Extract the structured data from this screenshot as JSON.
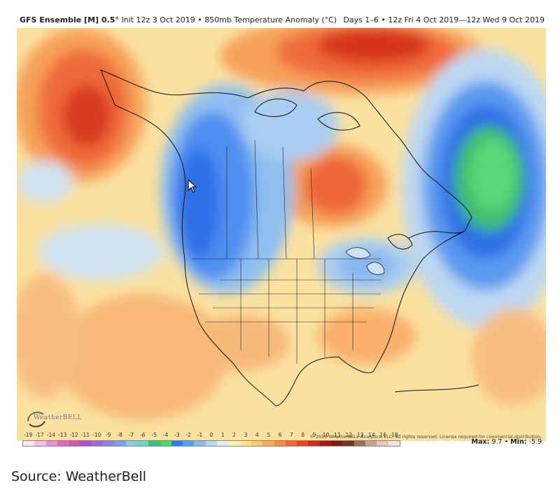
{
  "header": {
    "model": "GFS Ensemble [M] 0.5°",
    "init": "Init 12z 3 Oct 2019",
    "sep": "•",
    "field": "850mb Temperature Anomaly (°C)",
    "valid": "Days 1–6 • 12z Fri 4 Oct 2019—12z Wed 9 Oct 2019"
  },
  "map": {
    "region": "North America",
    "credit": "© 2019 WeatherBELL Analytics, LLC. All rights reserved. License required for commercial distribution.",
    "logo_text": "WeatherBELL",
    "logo_icon": "weatherbell-logo"
  },
  "colorbar": {
    "labels": [
      "-19",
      "-17",
      "-14",
      "-13",
      "-12",
      "-11",
      "-10",
      "-9",
      "-8",
      "-7",
      "-6",
      "-5",
      "-4",
      "-3",
      "-2",
      "-1",
      "0",
      "1",
      "2",
      "3",
      "4",
      "5",
      "6",
      "7",
      "8",
      "9",
      "10",
      "11",
      "12",
      "13",
      "14",
      "16",
      "18"
    ],
    "colors": [
      "#ffe6f7",
      "#f5bfe6",
      "#e88fd6",
      "#d768c4",
      "#c45ab5",
      "#a856c7",
      "#9a6bd6",
      "#8a84e3",
      "#7aa0ea",
      "#8cc8e8",
      "#6fd3cf",
      "#3fbf7a",
      "#4fd46c",
      "#2f7df2",
      "#5aa0f0",
      "#87bcf0",
      "#b9d8f2",
      "#e4eef7",
      "#fff2b8",
      "#fde296",
      "#fbc77a",
      "#f8a964",
      "#f48a4c",
      "#ef6a3a",
      "#e4482b",
      "#c92f1e",
      "#a3181a",
      "#7e1a1c",
      "#6b3a2a",
      "#a06f63",
      "#c9a29a",
      "#e2c8c4",
      "#f2e2e0"
    ]
  },
  "stats": {
    "max_label": "Max:",
    "max_value": "9.7",
    "sep": "•",
    "min_label": "Min:",
    "min_value": "-5.9"
  },
  "source": "Source:  WeatherBell"
}
